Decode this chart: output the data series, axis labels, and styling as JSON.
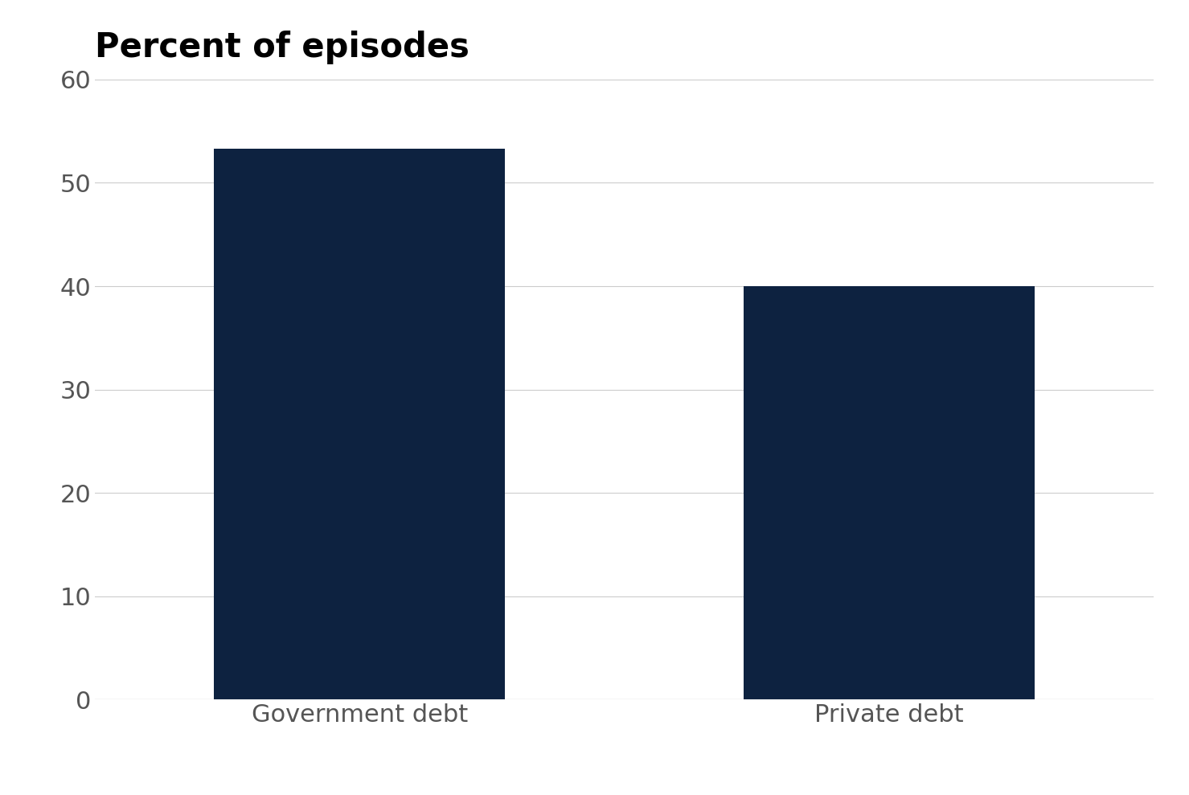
{
  "categories": [
    "Government debt",
    "Private debt"
  ],
  "values": [
    53.3,
    40.0
  ],
  "bar_color": "#0d2240",
  "title": "Percent of episodes",
  "ylim": [
    0,
    60
  ],
  "yticks": [
    0,
    10,
    20,
    30,
    40,
    50,
    60
  ],
  "title_fontsize": 30,
  "tick_fontsize": 22,
  "xlabel_fontsize": 22,
  "background_color": "#ffffff",
  "grid_color": "#cccccc",
  "tick_color": "#555555",
  "bar_width": 0.55,
  "bar_positions": [
    0.5,
    1.5
  ]
}
